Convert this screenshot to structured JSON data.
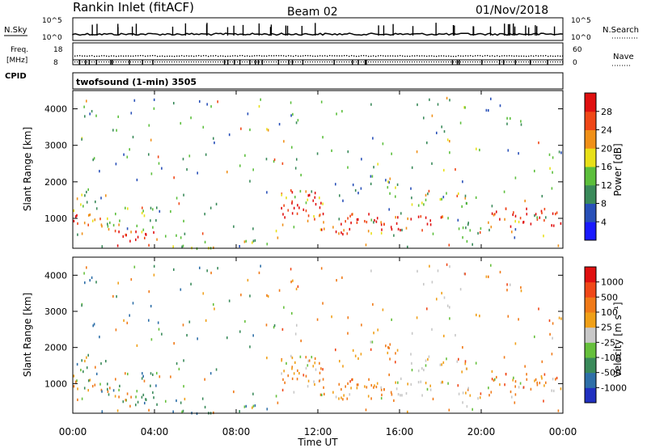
{
  "header": {
    "station": "Rankin Inlet (fitACF)",
    "beam": "Beam 02",
    "date": "01/Nov/2018"
  },
  "top_panels": {
    "nsky_label": "N.Sky",
    "nsearch_label": "N.Search",
    "nsky_ticks": [
      "10^5",
      "10^0"
    ],
    "nsearch_ticks": [
      "10^5",
      "10^0"
    ],
    "freq_label_1": "Freq.",
    "freq_label_2": "[MHz]",
    "freq_ticks": [
      "18",
      "8"
    ],
    "nave_label": "Nave",
    "nave_ticks": [
      "60",
      "0"
    ],
    "cpid_label": "CPID",
    "mode": "twofsound (1-min) 3505"
  },
  "chart_data": [
    {
      "type": "heatmap",
      "name": "power",
      "ylabel": "Slant Range [km]",
      "ylim": [
        180,
        4500
      ],
      "yticks": [
        "1000",
        "2000",
        "3000",
        "4000"
      ],
      "colorbar_label": "Power [dB]",
      "colorbar_ticks": [
        "4",
        "8",
        "12",
        "16",
        "20",
        "24",
        "28"
      ],
      "colorbar_colors": [
        "#1a1aff",
        "#2850b8",
        "#3a8a5a",
        "#5cbf3c",
        "#e8e018",
        "#f09018",
        "#f04818",
        "#e01010"
      ]
    },
    {
      "type": "heatmap",
      "name": "velocity",
      "ylabel": "Slant Range [km]",
      "xlabel": "Time UT",
      "ylim": [
        180,
        4500
      ],
      "yticks": [
        "1000",
        "2000",
        "3000",
        "4000"
      ],
      "xticks": [
        "00:00",
        "04:00",
        "08:00",
        "12:00",
        "16:00",
        "20:00",
        "00:00"
      ],
      "colorbar_label": "Velocity [m s⁻¹]",
      "colorbar_ticks": [
        "1000",
        "500",
        "100",
        "25",
        "-25",
        "-100",
        "-500",
        "-1000"
      ],
      "colorbar_colors": [
        "#2030c0",
        "#2e6fa8",
        "#3a8a5a",
        "#66c03c",
        "#c8c8c8",
        "#f0a018",
        "#f07a18",
        "#f04818",
        "#e01010"
      ]
    }
  ]
}
